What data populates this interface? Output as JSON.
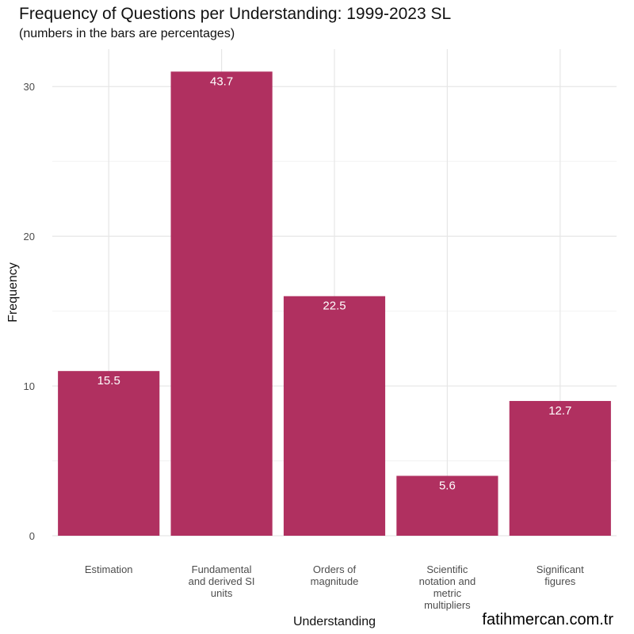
{
  "chart_data": {
    "type": "bar",
    "title": "Frequency of Questions per Understanding: 1999-2023 SL",
    "subtitle": "(numbers in the bars are percentages)",
    "xlabel": "Understanding",
    "ylabel": "Frequency",
    "ylim": [
      0,
      32.5
    ],
    "yticks": [
      0,
      10,
      20,
      30
    ],
    "grid": true,
    "categories": [
      [
        "Estimation"
      ],
      [
        "Fundamental",
        "and derived SI",
        "units"
      ],
      [
        "Orders of",
        "magnitude"
      ],
      [
        "Scientific",
        "notation and",
        "metric",
        "multipliers"
      ],
      [
        "Significant",
        "figures"
      ]
    ],
    "values": [
      11,
      31,
      16,
      4,
      9
    ],
    "bar_labels": [
      "15.5",
      "43.7",
      "22.5",
      "5.6",
      "12.7"
    ],
    "bar_color": "#b03060"
  },
  "watermark": "fatihmercan.com.tr"
}
